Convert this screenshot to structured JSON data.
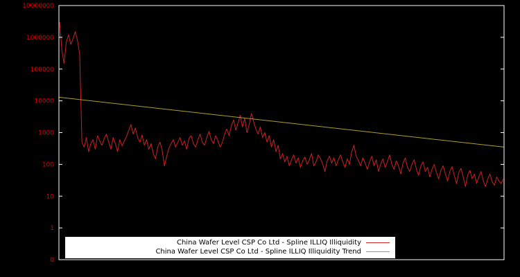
{
  "colors": {
    "background": "#000000",
    "frame": "#ffffff",
    "tick_labels": "#e60000"
  },
  "legend": {
    "items": [
      {
        "label": "China Wafer Level CSP Co Ltd - Spline ILLIQ Illiquidity",
        "color": "#cc2222"
      },
      {
        "label": "China Wafer Level CSP Co Ltd - Spline ILLIQ Illiquidity Trend",
        "color": "#b0a024"
      }
    ]
  },
  "chart_data": {
    "type": "line",
    "title": "",
    "xlabel": "",
    "ylabel": "",
    "yscale": "log",
    "grid": false,
    "legend_position": "bottom-center",
    "y_tick_labels": [
      "10000000",
      "1000000",
      "100000",
      "10000",
      "1000",
      "100",
      "10",
      "1",
      "0"
    ],
    "x_tick_labels": [],
    "ylim": [
      1,
      10000000
    ],
    "series": [
      {
        "name": "China Wafer Level CSP Co Ltd - Spline ILLIQ Illiquidity",
        "color": "#cc2222",
        "values": [
          3000000,
          400000,
          150000,
          700000,
          1200000,
          600000,
          900000,
          1500000,
          800000,
          300000,
          500,
          350,
          700,
          250,
          450,
          600,
          300,
          800,
          550,
          400,
          650,
          900,
          500,
          300,
          700,
          450,
          250,
          600,
          380,
          550,
          750,
          1200,
          1800,
          900,
          1400,
          700,
          500,
          850,
          400,
          600,
          300,
          450,
          220,
          150,
          350,
          500,
          280,
          90,
          180,
          320,
          450,
          600,
          350,
          500,
          700,
          400,
          550,
          300,
          650,
          800,
          450,
          350,
          600,
          900,
          500,
          400,
          700,
          1100,
          600,
          450,
          800,
          550,
          350,
          500,
          900,
          1300,
          800,
          1600,
          2500,
          1200,
          2000,
          3500,
          1500,
          2800,
          1000,
          1800,
          4000,
          2200,
          1300,
          900,
          1500,
          700,
          1000,
          500,
          800,
          350,
          600,
          250,
          400,
          150,
          220,
          120,
          180,
          90,
          140,
          200,
          110,
          160,
          80,
          130,
          170,
          100,
          140,
          220,
          90,
          120,
          200,
          150,
          100,
          60,
          130,
          180,
          110,
          160,
          90,
          140,
          200,
          120,
          80,
          150,
          100,
          250,
          400,
          180,
          130,
          90,
          160,
          110,
          70,
          120,
          180,
          90,
          140,
          60,
          100,
          150,
          80,
          120,
          200,
          100,
          70,
          130,
          90,
          50,
          110,
          160,
          80,
          60,
          100,
          140,
          70,
          45,
          90,
          120,
          60,
          80,
          40,
          70,
          100,
          55,
          35,
          65,
          90,
          50,
          30,
          60,
          85,
          45,
          25,
          55,
          75,
          40,
          20,
          45,
          65,
          35,
          50,
          25,
          40,
          60,
          30,
          20,
          35,
          50,
          28,
          22,
          40,
          30,
          25,
          35
        ]
      },
      {
        "name": "China Wafer Level CSP Co Ltd - Spline ILLIQ Illiquidity Trend",
        "color": "#b0a024",
        "shape": "log-linear",
        "start": 13000,
        "end": 350
      }
    ]
  }
}
